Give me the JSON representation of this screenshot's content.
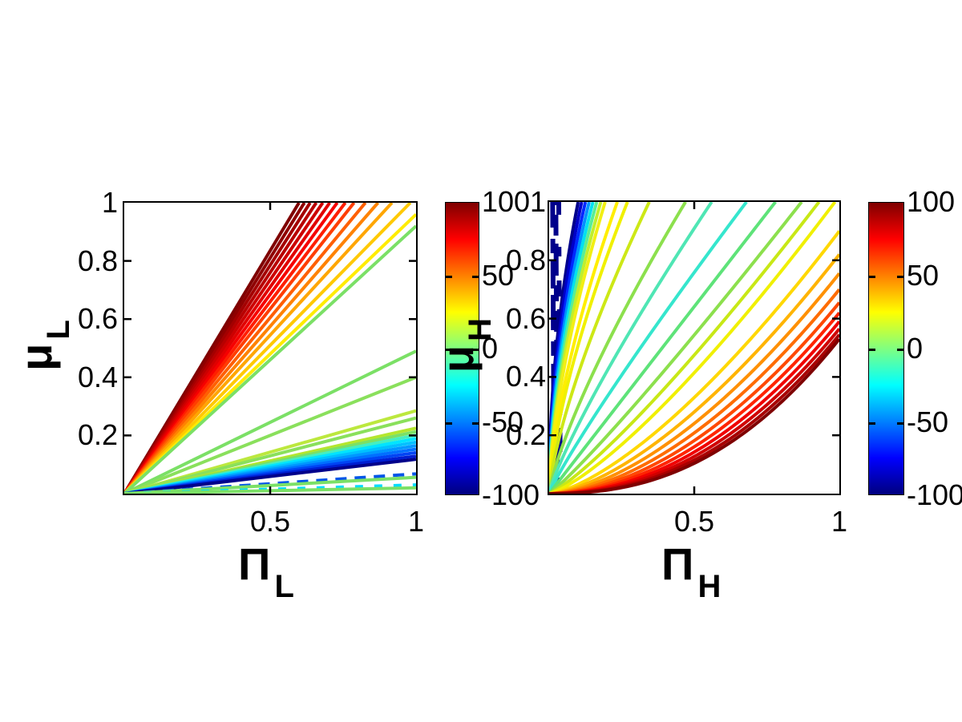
{
  "page": {
    "background": "#ffffff"
  },
  "left_plot": {
    "xlabel_main": "Π",
    "xlabel_sub": "L",
    "ylabel_main": "μ",
    "ylabel_sub": "L",
    "yticks": [
      "1",
      "0.8",
      "0.6",
      "0.4",
      "0.2"
    ],
    "ytick_values": [
      1,
      0.8,
      0.6,
      0.4,
      0.2
    ],
    "xticks": [
      "0.5",
      "1"
    ],
    "xtick_values": [
      0.5,
      1
    ]
  },
  "right_plot": {
    "xlabel_main": "Π",
    "xlabel_sub": "H",
    "ylabel_main": "μ",
    "ylabel_sub": "H",
    "yticks": [
      "1",
      "0.8",
      "0.6",
      "0.4",
      "0.2"
    ],
    "ytick_values": [
      1,
      0.8,
      0.6,
      0.4,
      0.2
    ],
    "xticks": [
      "0.5",
      "1"
    ],
    "xtick_values": [
      0.5,
      1
    ]
  },
  "colorbars": [
    {
      "ticks": [
        "100",
        "50",
        "0",
        "-50",
        "-100"
      ],
      "tick_values": [
        100,
        50,
        0,
        -50,
        -100
      ],
      "min": -100,
      "max": 100,
      "colormap": "jet"
    },
    {
      "ticks": [
        "100",
        "50",
        "0",
        "-50",
        "-100"
      ],
      "tick_values": [
        100,
        50,
        0,
        -50,
        -100
      ],
      "min": -100,
      "max": 100,
      "colormap": "jet"
    }
  ],
  "chart_data": [
    {
      "type": "line",
      "title": "",
      "xlabel": "Π_L",
      "ylabel": "μ_L",
      "xlim": [
        0,
        1
      ],
      "ylim": [
        0,
        1
      ],
      "grid": false,
      "colorbar": {
        "range": [
          -100,
          100
        ],
        "ticks": [
          100,
          50,
          0,
          -50,
          -100
        ],
        "colormap": "jet",
        "position": "right"
      },
      "shape": "straight rays from origin (0,0); slope = y at x=1; value estimated from jet colorbar",
      "lines": [
        {
          "slope": 1.67,
          "value": 100,
          "color": "#7f0000"
        },
        {
          "slope": 1.62,
          "value": 96,
          "color": "#8f0000"
        },
        {
          "slope": 1.57,
          "value": 92,
          "color": "#a40000"
        },
        {
          "slope": 1.52,
          "value": 88,
          "color": "#b80000"
        },
        {
          "slope": 1.47,
          "value": 84,
          "color": "#cd0000"
        },
        {
          "slope": 1.42,
          "value": 80,
          "color": "#e10000"
        },
        {
          "slope": 1.37,
          "value": 76,
          "color": "#f60000"
        },
        {
          "slope": 1.32,
          "value": 72,
          "color": "#ff1e00"
        },
        {
          "slope": 1.27,
          "value": 67,
          "color": "#ff3d00"
        },
        {
          "slope": 1.21,
          "value": 62,
          "color": "#ff5f00"
        },
        {
          "slope": 1.15,
          "value": 56,
          "color": "#ff8200"
        },
        {
          "slope": 1.09,
          "value": 50,
          "color": "#ffa600"
        },
        {
          "slope": 1.02,
          "value": 43,
          "color": "#ffc900"
        },
        {
          "slope": 0.96,
          "value": 34,
          "color": "#ffec00"
        },
        {
          "slope": 0.92,
          "value": 8,
          "color": "#7be066"
        },
        {
          "slope": 0.49,
          "value": 4,
          "color": "#7be066"
        },
        {
          "slope": 0.4,
          "value": 2,
          "color": "#8ae05c"
        },
        {
          "slope": 0.285,
          "value": 16,
          "color": "#bce83e"
        },
        {
          "slope": 0.26,
          "value": 6,
          "color": "#8ae05c"
        },
        {
          "slope": 0.225,
          "value": 14,
          "color": "#b4e62e"
        },
        {
          "slope": 0.213,
          "value": 5,
          "color": "#7be066"
        },
        {
          "slope": 0.201,
          "value": -18,
          "color": "#46eec0"
        },
        {
          "slope": 0.189,
          "value": -30,
          "color": "#00e4ff"
        },
        {
          "slope": 0.177,
          "value": -42,
          "color": "#00c0ff"
        },
        {
          "slope": 0.165,
          "value": -54,
          "color": "#0098ff"
        },
        {
          "slope": 0.153,
          "value": -66,
          "color": "#0070ff"
        },
        {
          "slope": 0.141,
          "value": -78,
          "color": "#0044f4"
        },
        {
          "slope": 0.129,
          "value": -88,
          "color": "#001ed2"
        },
        {
          "slope": 0.118,
          "value": -100,
          "color": "#00008b"
        },
        {
          "slope": 0.068,
          "value": -60,
          "color": "#0055e8",
          "dash": "14 10"
        },
        {
          "slope": 0.056,
          "value": 3,
          "color": "#7be066"
        },
        {
          "slope": 0.03,
          "value": -25,
          "color": "#00dcff",
          "dash": "10 14"
        },
        {
          "slope": 0.02,
          "value": 1,
          "color": "#7be066"
        }
      ]
    },
    {
      "type": "line",
      "title": "",
      "xlabel": "Π_H",
      "ylabel": "μ_H",
      "xlim": [
        0,
        1
      ],
      "ylim": [
        0,
        1
      ],
      "grid": false,
      "colorbar": {
        "range": [
          -100,
          100
        ],
        "ticks": [
          100,
          50,
          0,
          -50,
          -100
        ],
        "colormap": "jet",
        "position": "right"
      },
      "shape": "power-law curves y = A·x^p from origin; x_top = x where curve exits top, y_right = y at x=1; value estimated from jet colorbar",
      "curves": [
        {
          "x_top": 0.1,
          "p": 0.5,
          "value": -100,
          "color": "#00008b"
        },
        {
          "x_top": 0.112,
          "p": 0.52,
          "value": -92,
          "color": "#0000c8"
        },
        {
          "x_top": 0.125,
          "p": 0.54,
          "value": -82,
          "color": "#0028ff"
        },
        {
          "x_top": 0.138,
          "p": 0.56,
          "value": -66,
          "color": "#0090ff"
        },
        {
          "x_top": 0.151,
          "p": 0.58,
          "value": -45,
          "color": "#00e0f0"
        },
        {
          "x_top": 0.164,
          "p": 0.6,
          "value": -15,
          "color": "#5aed96"
        },
        {
          "x_top": 0.178,
          "p": 0.62,
          "value": 10,
          "color": "#c0ee2e"
        },
        {
          "x_top": 0.193,
          "p": 0.64,
          "value": 22,
          "color": "#f2ef13"
        },
        {
          "x_top": 0.235,
          "p": 0.66,
          "value": 26,
          "color": "#ffee00"
        },
        {
          "x_top": 0.27,
          "p": 0.68,
          "value": 24,
          "color": "#f0f000"
        },
        {
          "x_top": 0.345,
          "p": 0.72,
          "value": 18,
          "color": "#cde816"
        },
        {
          "x_top": 0.47,
          "p": 0.78,
          "value": 6,
          "color": "#8ce04d"
        },
        {
          "x_top": 0.56,
          "p": 0.84,
          "value": -8,
          "color": "#4fe6b4"
        },
        {
          "x_top": 0.68,
          "p": 0.9,
          "value": -16,
          "color": "#35e6cd"
        },
        {
          "x_top": 0.78,
          "p": 1.0,
          "value": 0,
          "color": "#5ee379"
        },
        {
          "x_top": 0.87,
          "p": 1.1,
          "value": 8,
          "color": "#8ce04d"
        },
        {
          "x_top": 0.93,
          "p": 1.2,
          "value": 16,
          "color": "#c8e816"
        },
        {
          "x_top": 0.985,
          "p": 1.3,
          "value": 24,
          "color": "#f0f000"
        },
        {
          "y_right": 0.9,
          "p": 1.45,
          "value": 34,
          "color": "#ffd800"
        },
        {
          "y_right": 0.82,
          "p": 1.55,
          "value": 44,
          "color": "#ffb400"
        },
        {
          "y_right": 0.755,
          "p": 1.65,
          "value": 52,
          "color": "#ff9000"
        },
        {
          "y_right": 0.7,
          "p": 1.75,
          "value": 60,
          "color": "#ff6c00"
        },
        {
          "y_right": 0.655,
          "p": 1.85,
          "value": 68,
          "color": "#ff4800"
        },
        {
          "y_right": 0.62,
          "p": 1.95,
          "value": 76,
          "color": "#ff2400"
        },
        {
          "y_right": 0.59,
          "p": 2.05,
          "value": 84,
          "color": "#f00000"
        },
        {
          "y_right": 0.565,
          "p": 2.15,
          "value": 90,
          "color": "#d00000"
        },
        {
          "y_right": 0.545,
          "p": 2.25,
          "value": 95,
          "color": "#a80000"
        },
        {
          "y_right": 0.53,
          "p": 2.35,
          "value": 100,
          "color": "#7f0000"
        }
      ],
      "vlines": [
        {
          "x": 0.012,
          "value": -100,
          "color": "#00008b",
          "dash": "34 10 18 14 44 8"
        },
        {
          "x": 0.023,
          "value": -100,
          "color": "#00008b",
          "dash": "20 12 40 10 26 12"
        },
        {
          "x": 0.033,
          "value": -100,
          "color": "#00008b",
          "dash": "12 40 30 16 20 30"
        }
      ]
    }
  ]
}
